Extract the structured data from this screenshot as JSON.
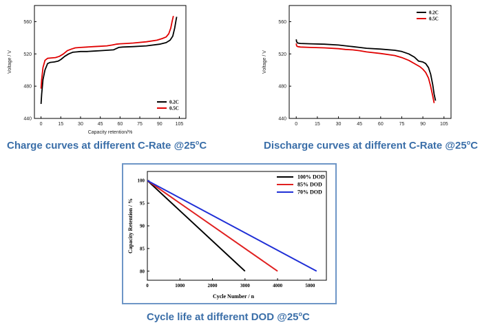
{
  "chart_data": [
    {
      "type": "line",
      "title": "Charge curves at different C-Rate @25ºC",
      "xlabel": "Capacity retention/%",
      "ylabel": "Voltage / V",
      "xlim": [
        -5,
        110
      ],
      "ylim": [
        440,
        580
      ],
      "xticks": [
        0,
        15,
        30,
        45,
        60,
        75,
        90,
        105
      ],
      "yticks": [
        440,
        480,
        520,
        560
      ],
      "legend": "bottom-right",
      "series": [
        {
          "name": "0.2C",
          "color": "#000000",
          "x": [
            0,
            0.5,
            1.5,
            3,
            5,
            7,
            10,
            13,
            15,
            18,
            21,
            24,
            27,
            30,
            35,
            40,
            45,
            50,
            55,
            57,
            59,
            62,
            70,
            80,
            90,
            95,
            98,
            100,
            101.5,
            102.5,
            103
          ],
          "y": [
            458,
            470,
            488,
            500,
            508,
            509.5,
            510,
            511,
            513,
            517,
            520,
            522,
            522.5,
            523,
            523,
            523.5,
            524,
            524.5,
            525,
            526.5,
            528,
            528.5,
            529,
            530,
            532,
            534,
            537,
            542,
            552,
            562,
            566
          ]
        },
        {
          "name": "0.5C",
          "color": "#e00000",
          "x": [
            0,
            0.5,
            1.5,
            3,
            5,
            8,
            11,
            14,
            17,
            20,
            23,
            26,
            30,
            35,
            40,
            45,
            50,
            54,
            57,
            60,
            65,
            70,
            80,
            88,
            92,
            95,
            97,
            98.5,
            99.5,
            100.5
          ],
          "y": [
            477,
            488,
            503,
            512,
            514.5,
            515,
            515.5,
            517,
            520,
            524,
            526,
            527.5,
            528,
            528.5,
            529,
            529.5,
            530,
            531,
            532,
            532.5,
            533,
            533.5,
            535,
            537,
            539,
            541,
            545,
            552,
            560,
            567
          ]
        }
      ]
    },
    {
      "type": "line",
      "title": "Discharge curves at different C-Rate @25ºC",
      "xlabel": "",
      "ylabel": "Voltage / V",
      "xlim": [
        -5,
        110
      ],
      "ylim": [
        440,
        580
      ],
      "xticks": [
        0,
        15,
        30,
        45,
        60,
        75,
        90,
        105
      ],
      "yticks": [
        440,
        480,
        520,
        560
      ],
      "legend": "top-right",
      "series": [
        {
          "name": "0.2C",
          "color": "#000000",
          "x": [
            0,
            0.3,
            1,
            3,
            10,
            20,
            30,
            40,
            45,
            50,
            60,
            70,
            75,
            80,
            84,
            87,
            90,
            92,
            94,
            95.5,
            97,
            98,
            99
          ],
          "y": [
            538,
            535,
            533.5,
            533,
            532.5,
            532,
            531,
            529,
            528,
            527,
            526,
            524.5,
            523,
            520,
            516,
            511,
            510,
            508,
            503,
            495,
            482,
            470,
            462
          ]
        },
        {
          "name": "0.5C",
          "color": "#e00000",
          "x": [
            0,
            0.3,
            1,
            3,
            10,
            20,
            30,
            35,
            40,
            45,
            50,
            60,
            70,
            75,
            80,
            85,
            88,
            90,
            92,
            94,
            95.5,
            97,
            98
          ],
          "y": [
            533,
            530,
            529,
            528.5,
            528,
            527.5,
            526.5,
            525.5,
            525,
            524,
            522.5,
            520.5,
            518,
            515.5,
            512,
            507,
            504,
            501,
            497,
            490,
            480,
            468,
            459
          ]
        }
      ]
    },
    {
      "type": "line",
      "title": "Cycle life at different DOD @25ºC",
      "xlabel": "Cycle Number / n",
      "ylabel": "Capacity Retention / %",
      "xlim": [
        0,
        5500
      ],
      "ylim": [
        78,
        102
      ],
      "xticks": [
        0,
        1000,
        2000,
        3000,
        4000,
        5000
      ],
      "yticks": [
        80,
        85,
        90,
        95,
        100
      ],
      "legend": "top-right",
      "series": [
        {
          "name": "100% DOD",
          "color": "#000000",
          "x": [
            0,
            3000
          ],
          "y": [
            100,
            80
          ]
        },
        {
          "name": "85% DOD",
          "color": "#e02020",
          "x": [
            0,
            4000
          ],
          "y": [
            100,
            80
          ]
        },
        {
          "name": "70% DOD",
          "color": "#1f2fd6",
          "x": [
            0,
            5200
          ],
          "y": [
            100,
            80
          ]
        }
      ]
    }
  ],
  "captions": {
    "charge": "Charge curves at different C-Rate @25",
    "discharge": "Discharge curves at different C-Rate @25",
    "cycle": "Cycle life at different DOD @25",
    "degree": "o",
    "unit": "C"
  }
}
